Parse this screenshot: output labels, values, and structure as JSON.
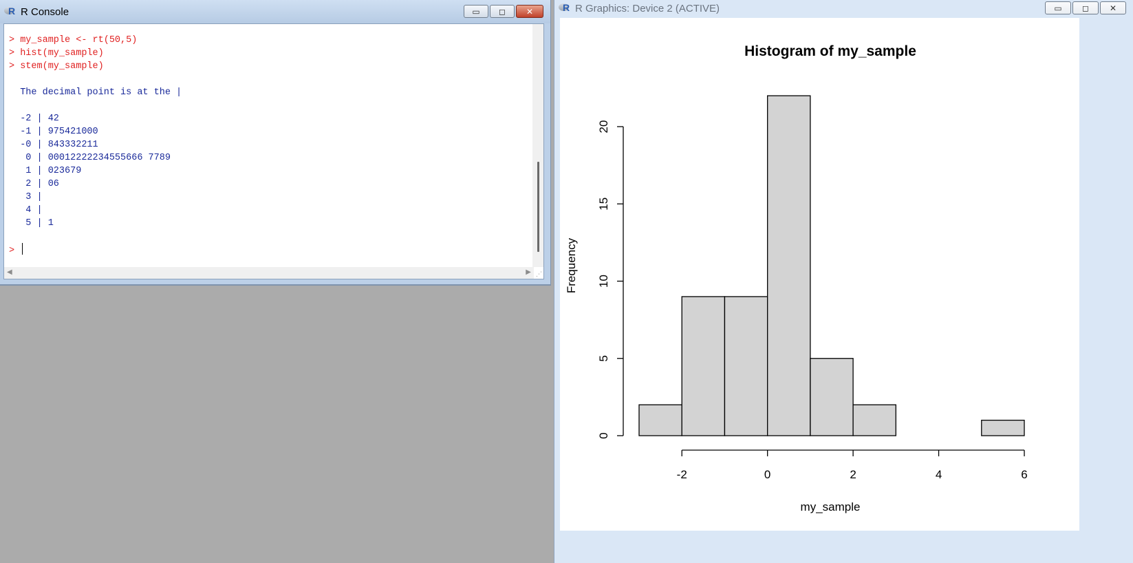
{
  "console": {
    "title": "R Console",
    "lines": [
      {
        "kind": "cmd",
        "text": "> my_sample <- rt(50,5)"
      },
      {
        "kind": "cmd",
        "text": "> hist(my_sample)"
      },
      {
        "kind": "cmd",
        "text": "> stem(my_sample)"
      },
      {
        "kind": "blank",
        "text": ""
      },
      {
        "kind": "out",
        "text": "  The decimal point is at the |"
      },
      {
        "kind": "blank",
        "text": ""
      },
      {
        "kind": "out",
        "text": "  -2 | 42"
      },
      {
        "kind": "out",
        "text": "  -1 | 975421000"
      },
      {
        "kind": "out",
        "text": "  -0 | 843332211"
      },
      {
        "kind": "out",
        "text": "   0 | 00012222234555666 7789"
      },
      {
        "kind": "out",
        "text": "   1 | 023679"
      },
      {
        "kind": "out",
        "text": "   2 | 06"
      },
      {
        "kind": "out",
        "text": "   3 |"
      },
      {
        "kind": "out",
        "text": "   4 |"
      },
      {
        "kind": "out",
        "text": "   5 | 1"
      },
      {
        "kind": "blank",
        "text": ""
      }
    ],
    "prompt": "> ",
    "buttons": {
      "minimize": "▭",
      "maximize": "◻",
      "close": "✕"
    }
  },
  "graphics": {
    "title": "R Graphics: Device 2 (ACTIVE)",
    "buttons": {
      "minimize": "▭",
      "maximize": "◻",
      "close": "✕"
    }
  },
  "chart_data": {
    "type": "bar",
    "title": "Histogram of my_sample",
    "xlabel": "my_sample",
    "ylabel": "Frequency",
    "bins": [
      {
        "from": -3,
        "to": -2,
        "count": 2
      },
      {
        "from": -2,
        "to": -1,
        "count": 9
      },
      {
        "from": -1,
        "to": 0,
        "count": 9
      },
      {
        "from": 0,
        "to": 1,
        "count": 22
      },
      {
        "from": 1,
        "to": 2,
        "count": 5
      },
      {
        "from": 2,
        "to": 3,
        "count": 2
      },
      {
        "from": 3,
        "to": 4,
        "count": 0
      },
      {
        "from": 4,
        "to": 5,
        "count": 0
      },
      {
        "from": 5,
        "to": 6,
        "count": 1
      }
    ],
    "xticks": [
      "-2",
      "0",
      "2",
      "4",
      "6"
    ],
    "xtick_values": [
      -2,
      0,
      2,
      4,
      6
    ],
    "yticks": [
      "0",
      "5",
      "10",
      "15",
      "20"
    ],
    "ytick_values": [
      0,
      5,
      10,
      15,
      20
    ],
    "xlim": [
      -3,
      6
    ],
    "ylim": [
      0,
      22
    ],
    "bar_fill": "#d3d3d3",
    "bar_stroke": "#000000",
    "grid": false
  }
}
